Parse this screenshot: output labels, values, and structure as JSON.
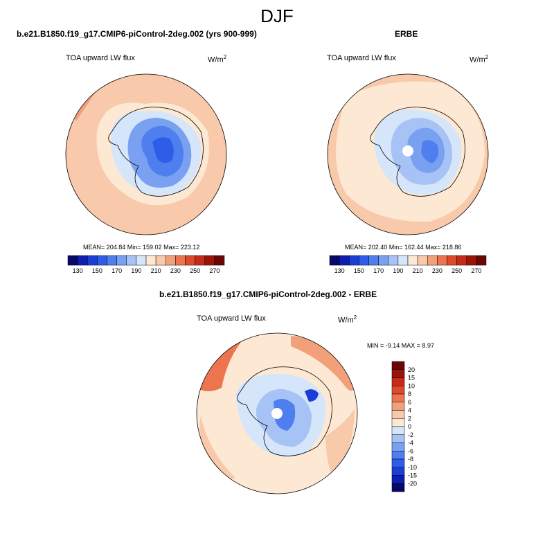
{
  "season_title": "DJF",
  "panels": [
    {
      "title": "b.e21.B1850.f19_g17.CMIP6-piControl-2deg.002 (yrs 900-999)",
      "variable": "TOA upward LW flux",
      "units_base": "W/m",
      "units_exp": "2",
      "stats_text": "MEAN= 204.84  Min= 159.02  Max= 223.12"
    },
    {
      "title": "ERBE",
      "variable": "TOA upward LW flux",
      "units_base": "W/m",
      "units_exp": "2",
      "stats_text": "MEAN= 202.40  Min= 162.44  Max= 218.86"
    },
    {
      "title": "b.e21.B1850.f19_g17.CMIP6-piControl-2deg.002 - ERBE",
      "variable": "TOA upward LW flux",
      "units_base": "W/m",
      "units_exp": "2",
      "stats_text": "MIN =  -9.14 MAX =   8.97"
    }
  ],
  "chart_data": [
    {
      "type": "heatmap",
      "title": "b.e21.B1850.f19_g17.CMIP6-piControl-2deg.002 (yrs 900-999)",
      "projection": "polar-stereographic-south",
      "variable": "TOA upward LW flux",
      "units": "W/m2",
      "stats": {
        "mean": 204.84,
        "min": 159.02,
        "max": 223.12
      },
      "levels": [
        130,
        140,
        150,
        160,
        170,
        180,
        190,
        200,
        210,
        220,
        230,
        240,
        250,
        260,
        270
      ],
      "tick_labels": [
        "130",
        "150",
        "170",
        "190",
        "210",
        "230",
        "250",
        "270"
      ],
      "colors": [
        "#08086b",
        "#0c1fb0",
        "#1b3fd6",
        "#2f5ce8",
        "#4f7fee",
        "#7aa0f2",
        "#a7c3f5",
        "#d6e6fa",
        "#fde8d4",
        "#f8c9aa",
        "#f2a07a",
        "#ec7550",
        "#e04a2c",
        "#c72a18",
        "#9a1408",
        "#6b0606"
      ],
      "legend": "bottom"
    },
    {
      "type": "heatmap",
      "title": "ERBE",
      "projection": "polar-stereographic-south",
      "variable": "TOA upward LW flux",
      "units": "W/m2",
      "stats": {
        "mean": 202.4,
        "min": 162.44,
        "max": 218.86
      },
      "levels": [
        130,
        140,
        150,
        160,
        170,
        180,
        190,
        200,
        210,
        220,
        230,
        240,
        250,
        260,
        270
      ],
      "tick_labels": [
        "130",
        "150",
        "170",
        "190",
        "210",
        "230",
        "250",
        "270"
      ],
      "colors": [
        "#08086b",
        "#0c1fb0",
        "#1b3fd6",
        "#2f5ce8",
        "#4f7fee",
        "#7aa0f2",
        "#a7c3f5",
        "#d6e6fa",
        "#fde8d4",
        "#f8c9aa",
        "#f2a07a",
        "#ec7550",
        "#e04a2c",
        "#c72a18",
        "#9a1408",
        "#6b0606"
      ],
      "legend": "bottom"
    },
    {
      "type": "heatmap",
      "title": "b.e21.B1850.f19_g17.CMIP6-piControl-2deg.002 - ERBE",
      "projection": "polar-stereographic-south",
      "variable": "TOA upward LW flux",
      "units": "W/m2",
      "stats": {
        "min": -9.14,
        "max": 8.97
      },
      "levels": [
        -20,
        -15,
        -10,
        -8,
        -6,
        -4,
        -2,
        0,
        2,
        4,
        6,
        8,
        10,
        15,
        20
      ],
      "tick_labels": [
        "20",
        "15",
        "10",
        "8",
        "6",
        "4",
        "2",
        "0",
        "-2",
        "-4",
        "-6",
        "-8",
        "-10",
        "-15",
        "-20"
      ],
      "colors": [
        "#08086b",
        "#0c1fb0",
        "#1b3fd6",
        "#2f5ce8",
        "#4f7fee",
        "#7aa0f2",
        "#a7c3f5",
        "#d6e6fa",
        "#fde8d4",
        "#f8c9aa",
        "#f2a07a",
        "#ec7550",
        "#e04a2c",
        "#c72a18",
        "#9a1408",
        "#6b0606"
      ],
      "legend": "right"
    }
  ]
}
